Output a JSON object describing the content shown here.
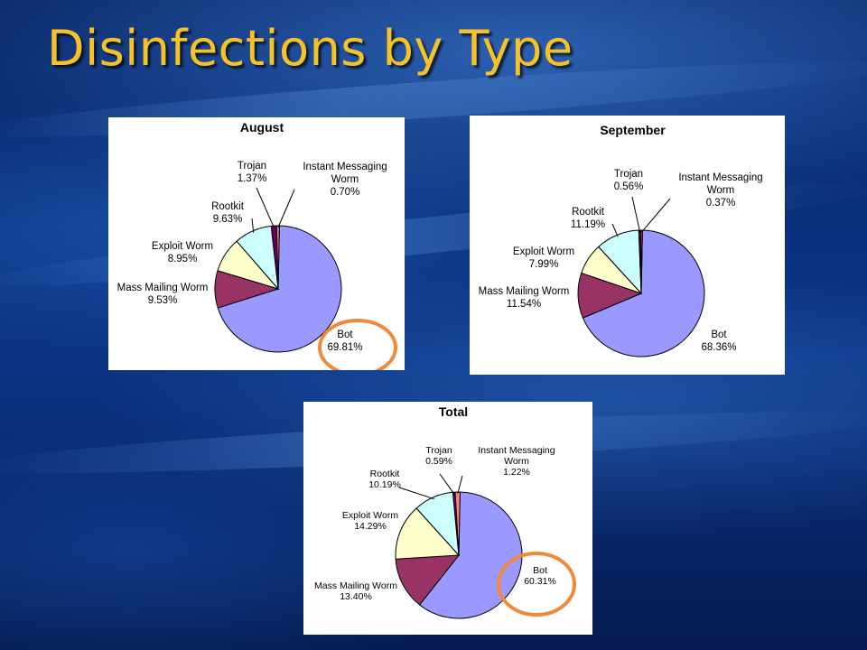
{
  "slide": {
    "title": "Disinfections by Type"
  },
  "colors": {
    "Bot": "#9999ff",
    "Mass Mailing Worm": "#993366",
    "Exploit Worm": "#ffffcc",
    "Rootkit": "#ccffff",
    "Trojan": "#660066",
    "Instant Messaging Worm": "#ff8080",
    "highlight_circle": "#f08a3a"
  },
  "chart_data": [
    {
      "type": "pie",
      "title": "August",
      "slices": [
        {
          "name": "Bot",
          "value": 69.81,
          "label": "69.81%"
        },
        {
          "name": "Mass Mailing Worm",
          "value": 9.53,
          "label": "9.53%"
        },
        {
          "name": "Exploit Worm",
          "value": 8.95,
          "label": "8.95%"
        },
        {
          "name": "Rootkit",
          "value": 9.63,
          "label": "9.63%"
        },
        {
          "name": "Trojan",
          "value": 1.37,
          "label": "1.37%"
        },
        {
          "name": "Instant Messaging Worm",
          "value": 0.7,
          "label": "0.70%"
        }
      ],
      "highlighted": "Bot"
    },
    {
      "type": "pie",
      "title": "September",
      "slices": [
        {
          "name": "Bot",
          "value": 68.36,
          "label": "68.36%"
        },
        {
          "name": "Mass Mailing Worm",
          "value": 11.54,
          "label": "11.54%"
        },
        {
          "name": "Exploit Worm",
          "value": 7.99,
          "label": "7.99%"
        },
        {
          "name": "Rootkit",
          "value": 11.19,
          "label": "11.19%"
        },
        {
          "name": "Trojan",
          "value": 0.56,
          "label": "0.56%"
        },
        {
          "name": "Instant Messaging Worm",
          "value": 0.37,
          "label": "0.37%"
        }
      ]
    },
    {
      "type": "pie",
      "title": "Total",
      "slices": [
        {
          "name": "Bot",
          "value": 60.31,
          "label": "60.31%"
        },
        {
          "name": "Mass Mailing Worm",
          "value": 13.4,
          "label": "13.40%"
        },
        {
          "name": "Exploit Worm",
          "value": 14.29,
          "label": "14.29%"
        },
        {
          "name": "Rootkit",
          "value": 10.19,
          "label": "10.19%"
        },
        {
          "name": "Trojan",
          "value": 0.59,
          "label": "0.59%"
        },
        {
          "name": "Instant Messaging Worm",
          "value": 1.22,
          "label": "1.22%"
        }
      ],
      "highlighted": "Bot"
    }
  ]
}
